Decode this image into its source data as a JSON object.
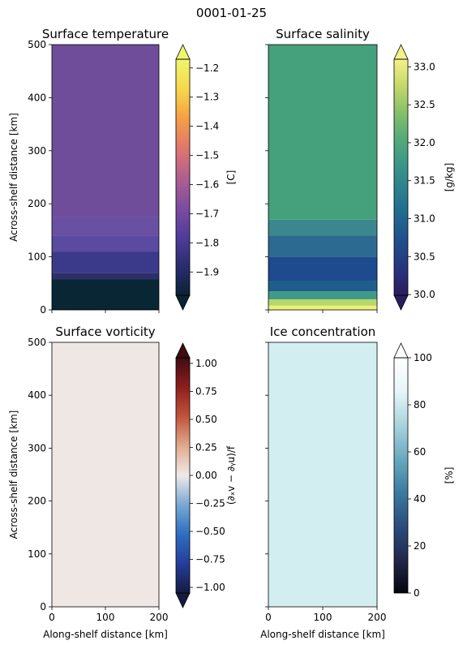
{
  "suptitle": "0001-01-25",
  "chart_data": [
    {
      "type": "heatmap",
      "title": "Surface temperature",
      "xlabel": "",
      "ylabel": "Across-shelf distance [km]",
      "xlim": [
        0,
        200
      ],
      "ylim": [
        0,
        500
      ],
      "xticks": [
        0,
        100,
        200
      ],
      "yticks": [
        0,
        100,
        200,
        300,
        400,
        500
      ],
      "show_xticklabels": false,
      "show_yticklabels": true,
      "field_bands": [
        {
          "from": 0,
          "to": 58,
          "color": "#082634"
        },
        {
          "from": 58,
          "to": 70,
          "color": "#2c2f6c"
        },
        {
          "from": 70,
          "to": 110,
          "color": "#3b3a8a"
        },
        {
          "from": 110,
          "to": 140,
          "color": "#5a4aa0"
        },
        {
          "from": 140,
          "to": 175,
          "color": "#6a50a2"
        },
        {
          "from": 175,
          "to": 500,
          "color": "#6f4d9a"
        }
      ],
      "colorbar": {
        "label": "[C]",
        "min": -1.98,
        "max": -1.17,
        "ticks": [
          -1.9,
          -1.8,
          -1.7,
          -1.6,
          -1.5,
          -1.4,
          -1.3,
          -1.2
        ],
        "tick_labels": [
          "−1.9",
          "−1.8",
          "−1.7",
          "−1.6",
          "−1.5",
          "−1.4",
          "−1.3",
          "−1.2"
        ],
        "extend": "both",
        "colors": [
          "#0b2234",
          "#2a2d6e",
          "#503d9c",
          "#7d4d9f",
          "#b0608f",
          "#e0766e",
          "#f5a044",
          "#f6d84d",
          "#eef56e"
        ]
      }
    },
    {
      "type": "heatmap",
      "title": "Surface salinity",
      "xlabel": "",
      "ylabel": "",
      "xlim": [
        0,
        200
      ],
      "ylim": [
        0,
        500
      ],
      "xticks": [
        0,
        100,
        200
      ],
      "yticks": [
        0,
        100,
        200,
        300,
        400,
        500
      ],
      "show_xticklabels": false,
      "show_yticklabels": false,
      "field_bands": [
        {
          "from": 0,
          "to": 8,
          "color": "#eef077"
        },
        {
          "from": 8,
          "to": 20,
          "color": "#b7d86a"
        },
        {
          "from": 20,
          "to": 35,
          "color": "#3f9a87"
        },
        {
          "from": 35,
          "to": 55,
          "color": "#1d5f8a"
        },
        {
          "from": 55,
          "to": 100,
          "color": "#1e4a8e"
        },
        {
          "from": 100,
          "to": 140,
          "color": "#2d6a92"
        },
        {
          "from": 140,
          "to": 170,
          "color": "#3b8790"
        },
        {
          "from": 170,
          "to": 500,
          "color": "#45a07c"
        }
      ],
      "colorbar": {
        "label": "[g/kg]",
        "min": 29.99,
        "max": 33.1,
        "ticks": [
          30.0,
          30.5,
          31.0,
          31.5,
          32.0,
          32.5,
          33.0
        ],
        "tick_labels": [
          "30.0",
          "30.5",
          "31.0",
          "31.5",
          "32.0",
          "32.5",
          "33.0"
        ],
        "extend": "both",
        "colors": [
          "#2a1d5e",
          "#27347e",
          "#204d8c",
          "#1f6790",
          "#2b7f8f",
          "#3c9688",
          "#55ab79",
          "#88c06a",
          "#c6d86a",
          "#f5f18a"
        ]
      }
    },
    {
      "type": "heatmap",
      "title": "Surface vorticity",
      "xlabel": "Along-shelf distance [km]",
      "ylabel": "Across-shelf distance [km]",
      "xlim": [
        0,
        200
      ],
      "ylim": [
        0,
        500
      ],
      "xticks": [
        0,
        100,
        200
      ],
      "yticks": [
        0,
        100,
        200,
        300,
        400,
        500
      ],
      "show_xticklabels": true,
      "show_yticklabels": true,
      "field_bands": [
        {
          "from": 0,
          "to": 500,
          "color": "#efe7e4"
        }
      ],
      "colorbar": {
        "label": "(∂ₓv − ∂ᵧu)/f",
        "min": -1.05,
        "max": 1.05,
        "ticks": [
          -1.0,
          -0.75,
          -0.5,
          -0.25,
          0.0,
          0.25,
          0.5,
          0.75,
          1.0
        ],
        "tick_labels": [
          "−1.00",
          "−0.75",
          "−0.50",
          "−0.25",
          "0.00",
          "0.25",
          "0.50",
          "0.75",
          "1.00"
        ],
        "extend": "both",
        "colors": [
          "#141b3f",
          "#253e9b",
          "#2d6ec0",
          "#7aa8d3",
          "#eeeae8",
          "#e0aa8e",
          "#c0553c",
          "#8e1e1e",
          "#3d0d12"
        ]
      }
    },
    {
      "type": "heatmap",
      "title": "Ice concentration",
      "xlabel": "Along-shelf distance [km]",
      "ylabel": "",
      "xlim": [
        0,
        200
      ],
      "ylim": [
        0,
        500
      ],
      "xticks": [
        0,
        100,
        200
      ],
      "yticks": [
        0,
        100,
        200,
        300,
        400,
        500
      ],
      "show_xticklabels": true,
      "show_yticklabels": false,
      "field_bands": [
        {
          "from": 0,
          "to": 500,
          "color": "#d3eef1"
        }
      ],
      "colorbar": {
        "label": "[%]",
        "min": 0,
        "max": 100,
        "ticks": [
          0,
          20,
          40,
          60,
          80,
          100
        ],
        "tick_labels": [
          "0",
          "20",
          "40",
          "60",
          "80",
          "100"
        ],
        "extend": "max",
        "colors": [
          "#05050f",
          "#22284d",
          "#2b4d7c",
          "#3d7aa0",
          "#6ba9bf",
          "#a9d3dd",
          "#e6f6f8",
          "#ffffff"
        ]
      }
    }
  ]
}
